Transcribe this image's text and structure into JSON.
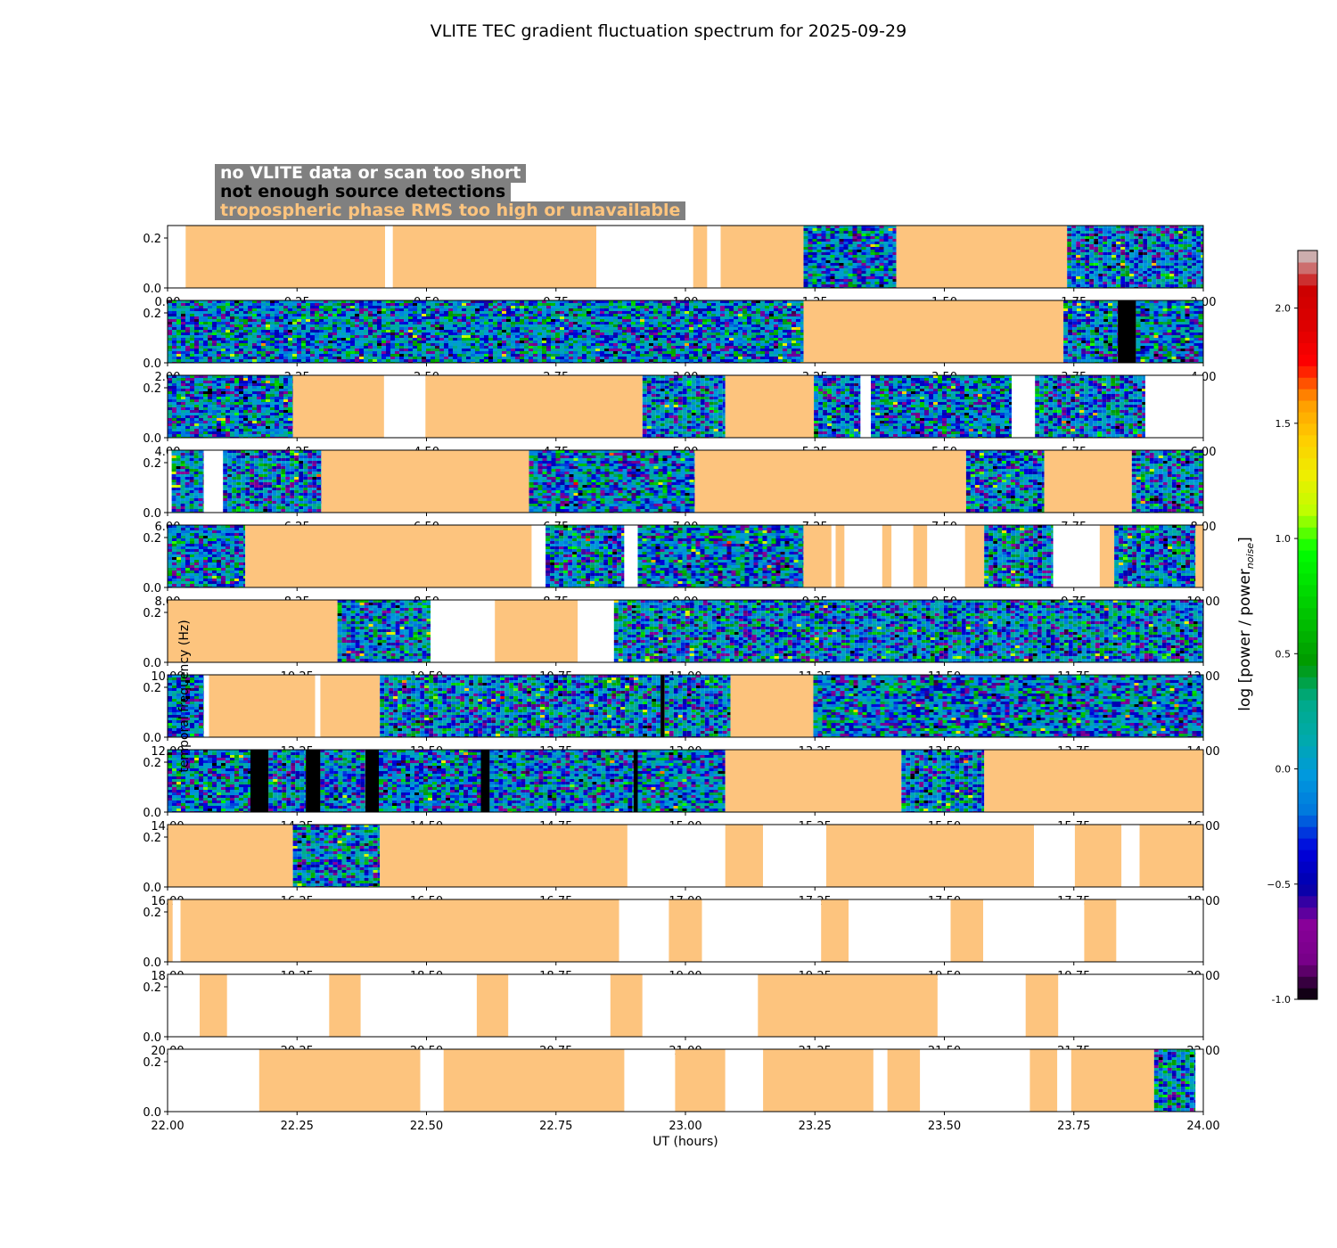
{
  "chart_data": {
    "type": "heatmap",
    "title": "VLITE TEC gradient fluctuation spectrum for 2025-09-29",
    "xlabel": "UT (hours)",
    "ylabel": "temporal frequency (Hz)",
    "colorbar_label": "log [power / power",
    "colorbar_label_sub": "noise",
    "colorbar_label_end": "]",
    "colorbar_range": [
      -1.0,
      2.25
    ],
    "colorbar_ticks": [
      "-1.0",
      "−0.5",
      "0.0",
      "0.5",
      "1.0",
      "1.5",
      "2.0"
    ],
    "colorbar_tick_values": [
      -1.0,
      -0.5,
      0.0,
      0.5,
      1.0,
      1.5,
      2.0
    ],
    "ylim": [
      0,
      0.25
    ],
    "y_ticks": [
      "0.0",
      "0.2"
    ],
    "legend": [
      {
        "label": "no VLITE data or scan too short",
        "color": "#ffffff"
      },
      {
        "label": "not enough source detections",
        "color": "#000000"
      },
      {
        "label": "tropospheric phase RMS too high or unavailable",
        "color": "#fdc47e"
      }
    ],
    "category_colors": {
      "tropo": "#fdc47e",
      "nodata": "#ffffff",
      "nodet": "#000000"
    },
    "panels": [
      {
        "xlim": [
          0,
          2
        ],
        "x_ticks": [
          "0.00",
          "0.25",
          "0.50",
          "0.75",
          "1.00",
          "1.25",
          "1.50",
          "1.75",
          "2.00"
        ],
        "segments": [
          [
            0.0,
            0.035,
            "nodata"
          ],
          [
            0.035,
            0.42,
            "tropo"
          ],
          [
            0.42,
            0.435,
            "nodata"
          ],
          [
            0.435,
            0.828,
            "tropo"
          ],
          [
            0.828,
            1.015,
            "nodata"
          ],
          [
            1.015,
            1.042,
            "tropo"
          ],
          [
            1.042,
            1.068,
            "nodata"
          ],
          [
            1.068,
            1.228,
            "tropo"
          ],
          [
            1.228,
            1.407,
            "data"
          ],
          [
            1.407,
            1.737,
            "tropo"
          ],
          [
            1.737,
            2.0,
            "data"
          ]
        ]
      },
      {
        "xlim": [
          2,
          4
        ],
        "x_ticks": [
          "2.00",
          "2.25",
          "2.50",
          "2.75",
          "3.00",
          "3.25",
          "3.50",
          "3.75",
          "4.00"
        ],
        "segments": [
          [
            2.0,
            3.228,
            "data"
          ],
          [
            3.228,
            3.73,
            "tropo"
          ],
          [
            3.73,
            3.835,
            "data"
          ],
          [
            3.835,
            3.87,
            "nodet"
          ],
          [
            3.87,
            4.0,
            "data"
          ]
        ]
      },
      {
        "xlim": [
          4,
          6
        ],
        "x_ticks": [
          "4.00",
          "4.25",
          "4.50",
          "4.75",
          "5.00",
          "5.25",
          "5.50",
          "5.75",
          "6.00"
        ],
        "segments": [
          [
            4.0,
            4.242,
            "data"
          ],
          [
            4.242,
            4.418,
            "tropo"
          ],
          [
            4.418,
            4.498,
            "nodata"
          ],
          [
            4.498,
            4.917,
            "tropo"
          ],
          [
            4.917,
            5.077,
            "data"
          ],
          [
            5.077,
            5.248,
            "tropo"
          ],
          [
            5.248,
            5.338,
            "data"
          ],
          [
            5.338,
            5.358,
            "nodata"
          ],
          [
            5.358,
            5.63,
            "data"
          ],
          [
            5.63,
            5.675,
            "nodata"
          ],
          [
            5.675,
            5.888,
            "data"
          ],
          [
            5.888,
            6.0,
            "nodata"
          ]
        ]
      },
      {
        "xlim": [
          6,
          8
        ],
        "x_ticks": [
          "6.00",
          "6.25",
          "6.50",
          "6.75",
          "7.00",
          "7.25",
          "7.50",
          "7.75",
          "8.00"
        ],
        "segments": [
          [
            6.0,
            6.008,
            "nodata"
          ],
          [
            6.008,
            6.07,
            "data"
          ],
          [
            6.07,
            6.107,
            "nodata"
          ],
          [
            6.107,
            6.297,
            "data"
          ],
          [
            6.297,
            6.698,
            "tropo"
          ],
          [
            6.698,
            7.018,
            "data"
          ],
          [
            7.018,
            7.542,
            "tropo"
          ],
          [
            7.542,
            7.693,
            "data"
          ],
          [
            7.693,
            7.862,
            "tropo"
          ],
          [
            7.862,
            8.0,
            "data"
          ]
        ]
      },
      {
        "xlim": [
          8,
          10
        ],
        "x_ticks": [
          "8.00",
          "8.25",
          "8.50",
          "8.75",
          "9.00",
          "9.25",
          "9.50",
          "9.75",
          "10.00"
        ],
        "segments": [
          [
            8.0,
            8.15,
            "data"
          ],
          [
            8.15,
            8.703,
            "tropo"
          ],
          [
            8.703,
            8.73,
            "nodata"
          ],
          [
            8.73,
            8.882,
            "data"
          ],
          [
            8.882,
            8.908,
            "nodata"
          ],
          [
            8.908,
            9.228,
            "data"
          ],
          [
            9.228,
            9.282,
            "tropo"
          ],
          [
            9.282,
            9.29,
            "nodata"
          ],
          [
            9.29,
            9.307,
            "tropo"
          ],
          [
            9.307,
            9.38,
            "nodata"
          ],
          [
            9.38,
            9.398,
            "tropo"
          ],
          [
            9.398,
            9.44,
            "nodata"
          ],
          [
            9.44,
            9.467,
            "tropo"
          ],
          [
            9.467,
            9.54,
            "nodata"
          ],
          [
            9.54,
            9.577,
            "tropo"
          ],
          [
            9.577,
            9.71,
            "data"
          ],
          [
            9.71,
            9.8,
            "nodata"
          ],
          [
            9.8,
            9.828,
            "tropo"
          ],
          [
            9.828,
            9.985,
            "data"
          ],
          [
            9.985,
            10.0,
            "tropo"
          ]
        ]
      },
      {
        "xlim": [
          10,
          12
        ],
        "x_ticks": [
          "10.00",
          "10.25",
          "10.50",
          "10.75",
          "11.00",
          "11.25",
          "11.50",
          "11.75",
          "12.00"
        ],
        "segments": [
          [
            10.0,
            10.328,
            "tropo"
          ],
          [
            10.328,
            10.508,
            "data"
          ],
          [
            10.508,
            10.632,
            "nodata"
          ],
          [
            10.632,
            10.792,
            "tropo"
          ],
          [
            10.792,
            10.862,
            "nodata"
          ],
          [
            10.862,
            12.0,
            "data"
          ]
        ]
      },
      {
        "xlim": [
          12,
          14
        ],
        "x_ticks": [
          "12.00",
          "12.25",
          "12.50",
          "12.75",
          "13.00",
          "13.25",
          "13.50",
          "13.75",
          "14.00"
        ],
        "segments": [
          [
            12.0,
            12.07,
            "data"
          ],
          [
            12.07,
            12.08,
            "nodata"
          ],
          [
            12.08,
            12.285,
            "tropo"
          ],
          [
            12.285,
            12.295,
            "nodata"
          ],
          [
            12.295,
            12.41,
            "tropo"
          ],
          [
            12.41,
            12.952,
            "data"
          ],
          [
            12.952,
            12.96,
            "nodet"
          ],
          [
            12.96,
            13.087,
            "data"
          ],
          [
            13.087,
            13.247,
            "tropo"
          ],
          [
            13.247,
            14.0,
            "data"
          ]
        ]
      },
      {
        "xlim": [
          14,
          16
        ],
        "x_ticks": [
          "14.00",
          "14.25",
          "14.50",
          "14.75",
          "15.00",
          "15.25",
          "15.50",
          "15.75",
          "16.00"
        ],
        "segments": [
          [
            14.0,
            14.16,
            "data"
          ],
          [
            14.16,
            14.195,
            "nodet"
          ],
          [
            14.195,
            14.267,
            "data"
          ],
          [
            14.267,
            14.295,
            "nodet"
          ],
          [
            14.295,
            14.382,
            "data"
          ],
          [
            14.382,
            14.408,
            "nodet"
          ],
          [
            14.408,
            14.605,
            "data"
          ],
          [
            14.605,
            14.622,
            "nodet"
          ],
          [
            14.622,
            14.9,
            "data"
          ],
          [
            14.9,
            14.908,
            "nodet"
          ],
          [
            14.908,
            15.077,
            "data"
          ],
          [
            15.077,
            15.417,
            "tropo"
          ],
          [
            15.417,
            15.577,
            "data"
          ],
          [
            15.577,
            16.0,
            "tropo"
          ]
        ]
      },
      {
        "xlim": [
          16,
          18
        ],
        "x_ticks": [
          "16.00",
          "16.25",
          "16.50",
          "16.75",
          "17.00",
          "17.25",
          "17.50",
          "17.75",
          "18.00"
        ],
        "segments": [
          [
            16.0,
            16.242,
            "tropo"
          ],
          [
            16.242,
            16.41,
            "data"
          ],
          [
            16.41,
            16.888,
            "tropo"
          ],
          [
            16.888,
            17.077,
            "nodata"
          ],
          [
            17.077,
            17.15,
            "tropo"
          ],
          [
            17.15,
            17.272,
            "nodata"
          ],
          [
            17.272,
            17.673,
            "tropo"
          ],
          [
            17.673,
            17.752,
            "nodata"
          ],
          [
            17.752,
            17.842,
            "tropo"
          ],
          [
            17.842,
            17.877,
            "nodata"
          ],
          [
            17.877,
            18.0,
            "tropo"
          ]
        ]
      },
      {
        "xlim": [
          18,
          20
        ],
        "x_ticks": [
          "18.00",
          "18.25",
          "18.50",
          "18.75",
          "19.00",
          "19.25",
          "19.50",
          "19.75",
          "20.00"
        ],
        "segments": [
          [
            18.0,
            18.01,
            "tropo"
          ],
          [
            18.01,
            18.025,
            "nodata"
          ],
          [
            18.025,
            18.872,
            "tropo"
          ],
          [
            18.872,
            18.968,
            "nodata"
          ],
          [
            18.968,
            19.032,
            "tropo"
          ],
          [
            19.032,
            19.262,
            "nodata"
          ],
          [
            19.262,
            19.315,
            "tropo"
          ],
          [
            19.315,
            19.512,
            "nodata"
          ],
          [
            19.512,
            19.575,
            "tropo"
          ],
          [
            19.575,
            19.77,
            "nodata"
          ],
          [
            19.77,
            19.832,
            "tropo"
          ],
          [
            19.832,
            20.0,
            "nodata"
          ]
        ]
      },
      {
        "xlim": [
          20,
          22
        ],
        "x_ticks": [
          "20.00",
          "20.25",
          "20.50",
          "20.75",
          "21.00",
          "21.25",
          "21.50",
          "21.75",
          "22.00"
        ],
        "segments": [
          [
            20.0,
            20.062,
            "nodata"
          ],
          [
            20.062,
            20.115,
            "tropo"
          ],
          [
            20.115,
            20.312,
            "nodata"
          ],
          [
            20.312,
            20.373,
            "tropo"
          ],
          [
            20.373,
            20.597,
            "nodata"
          ],
          [
            20.597,
            20.658,
            "tropo"
          ],
          [
            20.658,
            20.855,
            "nodata"
          ],
          [
            20.855,
            20.917,
            "tropo"
          ],
          [
            20.917,
            21.14,
            "nodata"
          ],
          [
            21.14,
            21.487,
            "tropo"
          ],
          [
            21.487,
            21.657,
            "nodata"
          ],
          [
            21.657,
            21.72,
            "tropo"
          ],
          [
            21.72,
            22.0,
            "nodata"
          ]
        ]
      },
      {
        "xlim": [
          22,
          24
        ],
        "x_ticks": [
          "22.00",
          "22.25",
          "22.50",
          "22.75",
          "23.00",
          "23.25",
          "23.50",
          "23.75",
          "24.00"
        ],
        "segments": [
          [
            22.0,
            22.177,
            "nodata"
          ],
          [
            22.177,
            22.488,
            "tropo"
          ],
          [
            22.488,
            22.533,
            "nodata"
          ],
          [
            22.533,
            22.882,
            "tropo"
          ],
          [
            22.882,
            22.98,
            "nodata"
          ],
          [
            22.98,
            23.077,
            "tropo"
          ],
          [
            23.077,
            23.15,
            "nodata"
          ],
          [
            23.15,
            23.363,
            "tropo"
          ],
          [
            23.363,
            23.39,
            "nodata"
          ],
          [
            23.39,
            23.453,
            "tropo"
          ],
          [
            23.453,
            23.665,
            "nodata"
          ],
          [
            23.665,
            23.718,
            "tropo"
          ],
          [
            23.718,
            23.745,
            "nodata"
          ],
          [
            23.745,
            23.905,
            "tropo"
          ],
          [
            23.905,
            23.985,
            "data"
          ],
          [
            23.985,
            24.0,
            "nodata"
          ]
        ]
      }
    ]
  }
}
